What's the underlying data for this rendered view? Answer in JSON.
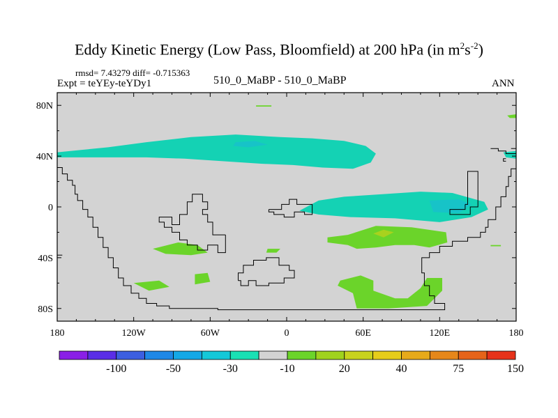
{
  "chart_data": {
    "type": "heatmap",
    "title_main": "Eddy Kinetic Energy (Low Pass, Bloomfield) at 200 hPa (in m",
    "title_sup1": "2",
    "title_mid": "s",
    "title_sup2": "-2",
    "title_end": ")",
    "stats_line": "rmsd= 7.43279 diff= -0.715363",
    "expt_label": "Expt = teYEy-teYDy1",
    "center_label": "510_0_MaBP - 510_0_MaBP",
    "season_label": "ANN",
    "x_ticks": [
      {
        "lon": -180,
        "label": "180"
      },
      {
        "lon": -120,
        "label": "120W"
      },
      {
        "lon": -60,
        "label": "60W"
      },
      {
        "lon": 0,
        "label": "0"
      },
      {
        "lon": 60,
        "label": "60E"
      },
      {
        "lon": 120,
        "label": "120E"
      },
      {
        "lon": 180,
        "label": "180"
      }
    ],
    "y_ticks": [
      {
        "lat": 80,
        "label": "80N"
      },
      {
        "lat": 40,
        "label": "40N"
      },
      {
        "lat": 0,
        "label": "0"
      },
      {
        "lat": -40,
        "label": "40S"
      },
      {
        "lat": -80,
        "label": "80S"
      }
    ],
    "xlim": [
      -180,
      180
    ],
    "ylim": [
      -90,
      90
    ],
    "colorbar": {
      "colors": [
        "#8a1fe6",
        "#5a2ee6",
        "#3c5fe0",
        "#1f88e6",
        "#14a8e6",
        "#14c8d8",
        "#19e0b4",
        "#d3d3d3",
        "#6bd42a",
        "#a0d21e",
        "#c8d21e",
        "#e6cd1a",
        "#e6aa1a",
        "#e6871a",
        "#e6641a",
        "#e6321a"
      ],
      "labels": [
        "-100",
        "-50",
        "-30",
        "-10",
        "20",
        "40",
        "75",
        "150"
      ]
    },
    "land_color": "#d3d3d3",
    "neg_fill": "#14d2b4",
    "neg_fill_strong": "#17c3c8",
    "pos_fill": "#6bd42a",
    "pos_fill_strong": "#a8d21e",
    "regions": [
      {
        "sign": "neg",
        "level": -10,
        "pts": [
          [
            -180,
            43
          ],
          [
            -160,
            45
          ],
          [
            -140,
            47
          ],
          [
            -110,
            51
          ],
          [
            -75,
            55
          ],
          [
            -40,
            57
          ],
          [
            -5,
            55
          ],
          [
            20,
            54
          ],
          [
            45,
            52
          ],
          [
            62,
            48
          ],
          [
            70,
            42
          ],
          [
            66,
            35
          ],
          [
            52,
            30
          ],
          [
            28,
            31
          ],
          [
            5,
            33
          ],
          [
            -20,
            34
          ],
          [
            -50,
            36
          ],
          [
            -80,
            38
          ],
          [
            -110,
            39
          ],
          [
            -140,
            39
          ],
          [
            -170,
            39
          ],
          [
            -180,
            39
          ]
        ]
      },
      {
        "sign": "neg",
        "level": -30,
        "pts": [
          [
            -40,
            51
          ],
          [
            -25,
            52
          ],
          [
            -15,
            49
          ],
          [
            -30,
            47
          ],
          [
            -42,
            48
          ]
        ]
      },
      {
        "sign": "neg",
        "level": -10,
        "pts": [
          [
            170,
            43
          ],
          [
            180,
            44
          ],
          [
            180,
            38
          ],
          [
            172,
            39
          ]
        ]
      },
      {
        "sign": "neg",
        "level": -10,
        "pts": [
          [
            10,
            -3
          ],
          [
            25,
            5
          ],
          [
            45,
            8
          ],
          [
            75,
            10
          ],
          [
            105,
            12
          ],
          [
            130,
            11
          ],
          [
            155,
            4
          ],
          [
            158,
            -2
          ],
          [
            145,
            -8
          ],
          [
            120,
            -12
          ],
          [
            85,
            -9
          ],
          [
            50,
            -8
          ],
          [
            25,
            -6
          ]
        ]
      },
      {
        "sign": "neg",
        "level": -30,
        "pts": [
          [
            112,
            5
          ],
          [
            135,
            6
          ],
          [
            145,
            2
          ],
          [
            135,
            -5
          ],
          [
            115,
            -4
          ]
        ]
      },
      {
        "sign": "pos",
        "level": 20,
        "pts": [
          [
            48,
            -22
          ],
          [
            70,
            -15
          ],
          [
            98,
            -16
          ],
          [
            125,
            -20
          ],
          [
            126,
            -28
          ],
          [
            112,
            -32
          ],
          [
            100,
            -30
          ],
          [
            85,
            -30
          ],
          [
            70,
            -32
          ],
          [
            55,
            -33
          ],
          [
            48,
            -30
          ],
          [
            32,
            -28
          ],
          [
            32,
            -24
          ]
        ]
      },
      {
        "sign": "pos",
        "level": 40,
        "pts": [
          [
            68,
            -21
          ],
          [
            76,
            -18
          ],
          [
            84,
            -20
          ],
          [
            76,
            -24
          ]
        ]
      },
      {
        "sign": "pos",
        "level": 20,
        "pts": [
          [
            -105,
            -33
          ],
          [
            -85,
            -28
          ],
          [
            -70,
            -30
          ],
          [
            -62,
            -36
          ],
          [
            -75,
            -38
          ],
          [
            -95,
            -37
          ]
        ]
      },
      {
        "sign": "pos",
        "level": 20,
        "pts": [
          [
            -15,
            -33
          ],
          [
            -5,
            -33
          ],
          [
            -8,
            -36
          ],
          [
            -16,
            -36
          ]
        ]
      },
      {
        "sign": "pos",
        "level": 20,
        "pts": [
          [
            -120,
            -60
          ],
          [
            -100,
            -58
          ],
          [
            -92,
            -63
          ],
          [
            -108,
            -66
          ]
        ]
      },
      {
        "sign": "pos",
        "level": 20,
        "pts": [
          [
            -72,
            -53
          ],
          [
            -62,
            -52
          ],
          [
            -60,
            -59
          ],
          [
            -72,
            -61
          ]
        ]
      },
      {
        "sign": "pos",
        "level": 20,
        "pts": [
          [
            42,
            -58
          ],
          [
            58,
            -54
          ],
          [
            68,
            -58
          ],
          [
            68,
            -66
          ],
          [
            85,
            -72
          ],
          [
            95,
            -72
          ],
          [
            105,
            -64
          ],
          [
            110,
            -56
          ],
          [
            122,
            -56
          ],
          [
            122,
            -66
          ],
          [
            110,
            -78
          ],
          [
            80,
            -80
          ],
          [
            55,
            -80
          ],
          [
            52,
            -68
          ],
          [
            40,
            -62
          ]
        ]
      },
      {
        "sign": "pos",
        "level": 20,
        "pts": [
          [
            -24,
            80
          ],
          [
            -12,
            80
          ],
          [
            -12,
            79
          ],
          [
            -24,
            79
          ]
        ]
      },
      {
        "sign": "pos",
        "level": 20,
        "pts": [
          [
            173,
            72
          ],
          [
            180,
            73
          ],
          [
            180,
            70
          ],
          [
            175,
            70
          ]
        ]
      },
      {
        "sign": "pos",
        "level": 20,
        "pts": [
          [
            160,
            -30
          ],
          [
            168,
            -30
          ],
          [
            168,
            -31
          ],
          [
            160,
            -31
          ]
        ]
      }
    ],
    "outlines": [
      [
        [
          -180,
          31
        ],
        [
          -176,
          31
        ],
        [
          -176,
          26
        ],
        [
          -172,
          26
        ],
        [
          -172,
          21
        ],
        [
          -168,
          21
        ],
        [
          -168,
          17
        ],
        [
          -166,
          17
        ],
        [
          -166,
          10
        ],
        [
          -164,
          10
        ],
        [
          -164,
          5
        ],
        [
          -160,
          5
        ],
        [
          -160,
          -2
        ],
        [
          -156,
          -2
        ],
        [
          -156,
          -8
        ],
        [
          -152,
          -8
        ],
        [
          -152,
          -16
        ],
        [
          -148,
          -16
        ],
        [
          -148,
          -24
        ],
        [
          -144,
          -24
        ],
        [
          -144,
          -32
        ],
        [
          -140,
          -32
        ],
        [
          -140,
          -40
        ],
        [
          -136,
          -40
        ],
        [
          -136,
          -48
        ],
        [
          -132,
          -48
        ],
        [
          -132,
          -56
        ],
        [
          -128,
          -56
        ],
        [
          -128,
          -62
        ],
        [
          -122,
          -62
        ],
        [
          -122,
          -68
        ],
        [
          -116,
          -68
        ],
        [
          -116,
          -72
        ],
        [
          -110,
          -72
        ],
        [
          -110,
          -76
        ],
        [
          -102,
          -76
        ],
        [
          -102,
          -78
        ],
        [
          -92,
          -78
        ],
        [
          -92,
          -80
        ],
        [
          -54,
          -80
        ],
        [
          -54,
          -81
        ],
        [
          124,
          -81
        ],
        [
          124,
          -76
        ],
        [
          116,
          -76
        ],
        [
          116,
          -70
        ],
        [
          112,
          -70
        ],
        [
          112,
          -62
        ],
        [
          108,
          -62
        ],
        [
          108,
          -52
        ],
        [
          106,
          -52
        ],
        [
          106,
          -40
        ],
        [
          112,
          -40
        ],
        [
          112,
          -36
        ],
        [
          120,
          -36
        ],
        [
          120,
          -31
        ],
        [
          130,
          -31
        ],
        [
          130,
          -27
        ],
        [
          142,
          -27
        ],
        [
          142,
          -24
        ],
        [
          152,
          -24
        ],
        [
          152,
          -20
        ],
        [
          156,
          -20
        ],
        [
          156,
          -16
        ],
        [
          158,
          -16
        ],
        [
          158,
          -10
        ],
        [
          164,
          -10
        ],
        [
          164,
          0
        ],
        [
          168,
          0
        ],
        [
          168,
          8
        ],
        [
          172,
          8
        ],
        [
          172,
          16
        ],
        [
          174,
          16
        ],
        [
          174,
          24
        ],
        [
          176,
          24
        ],
        [
          176,
          30
        ],
        [
          180,
          30
        ]
      ],
      [
        [
          -180,
          -38
        ],
        [
          -176,
          -38
        ]
      ],
      [
        [
          -48,
          -22
        ],
        [
          -58,
          -22
        ],
        [
          -58,
          -12
        ],
        [
          -62,
          -12
        ],
        [
          -62,
          -6
        ],
        [
          -66,
          -6
        ],
        [
          -66,
          -2
        ],
        [
          -62,
          -2
        ],
        [
          -62,
          4
        ],
        [
          -66,
          4
        ],
        [
          -66,
          10
        ],
        [
          -74,
          10
        ],
        [
          -74,
          4
        ],
        [
          -78,
          4
        ],
        [
          -78,
          -6
        ],
        [
          -84,
          -6
        ],
        [
          -84,
          -14
        ],
        [
          -90,
          -14
        ],
        [
          -90,
          -8
        ],
        [
          -100,
          -8
        ],
        [
          -100,
          -12
        ],
        [
          -96,
          -12
        ],
        [
          -96,
          -16
        ],
        [
          -90,
          -16
        ],
        [
          -90,
          -20
        ],
        [
          -84,
          -20
        ],
        [
          -84,
          -26
        ],
        [
          -78,
          -26
        ],
        [
          -78,
          -30
        ],
        [
          -70,
          -30
        ],
        [
          -70,
          -34
        ],
        [
          -62,
          -34
        ],
        [
          -62,
          -30
        ],
        [
          -54,
          -30
        ],
        [
          -54,
          -36
        ],
        [
          -48,
          -36
        ],
        [
          -48,
          -22
        ]
      ],
      [
        [
          -14,
          -2
        ],
        [
          -4,
          -2
        ],
        [
          -4,
          2
        ],
        [
          2,
          2
        ],
        [
          2,
          6
        ],
        [
          8,
          6
        ],
        [
          8,
          2
        ],
        [
          20,
          2
        ],
        [
          20,
          -6
        ],
        [
          14,
          -6
        ],
        [
          14,
          -4
        ],
        [
          6,
          -4
        ],
        [
          6,
          -8
        ],
        [
          -2,
          -8
        ],
        [
          -2,
          -6
        ],
        [
          -10,
          -6
        ],
        [
          -10,
          -4
        ],
        [
          -14,
          -4
        ],
        [
          -14,
          -2
        ]
      ],
      [
        [
          -38,
          -58
        ],
        [
          -38,
          -52
        ],
        [
          -34,
          -52
        ],
        [
          -34,
          -46
        ],
        [
          -26,
          -46
        ],
        [
          -26,
          -42
        ],
        [
          -16,
          -42
        ],
        [
          -16,
          -40
        ],
        [
          -6,
          -40
        ],
        [
          -6,
          -46
        ],
        [
          2,
          -46
        ],
        [
          2,
          -50
        ],
        [
          6,
          -50
        ],
        [
          6,
          -56
        ],
        [
          -2,
          -56
        ],
        [
          -2,
          -60
        ],
        [
          -14,
          -60
        ],
        [
          -14,
          -62
        ],
        [
          -24,
          -62
        ],
        [
          -24,
          -58
        ],
        [
          -30,
          -58
        ],
        [
          -30,
          -62
        ],
        [
          -36,
          -62
        ],
        [
          -36,
          -58
        ],
        [
          -38,
          -58
        ]
      ],
      [
        [
          140,
          2
        ],
        [
          142,
          2
        ],
        [
          142,
          28
        ],
        [
          150,
          28
        ],
        [
          150,
          0
        ],
        [
          144,
          0
        ],
        [
          144,
          -6
        ],
        [
          128,
          -6
        ],
        [
          128,
          -2
        ],
        [
          140,
          -2
        ],
        [
          140,
          2
        ]
      ],
      [
        [
          160,
          46
        ],
        [
          166,
          46
        ],
        [
          166,
          44
        ],
        [
          172,
          44
        ],
        [
          172,
          42
        ],
        [
          180,
          42
        ]
      ],
      [
        [
          172,
          38
        ],
        [
          170,
          38
        ],
        [
          170,
          36
        ],
        [
          172,
          36
        ]
      ],
      [
        [
          176,
          46
        ],
        [
          180,
          46
        ]
      ]
    ]
  }
}
